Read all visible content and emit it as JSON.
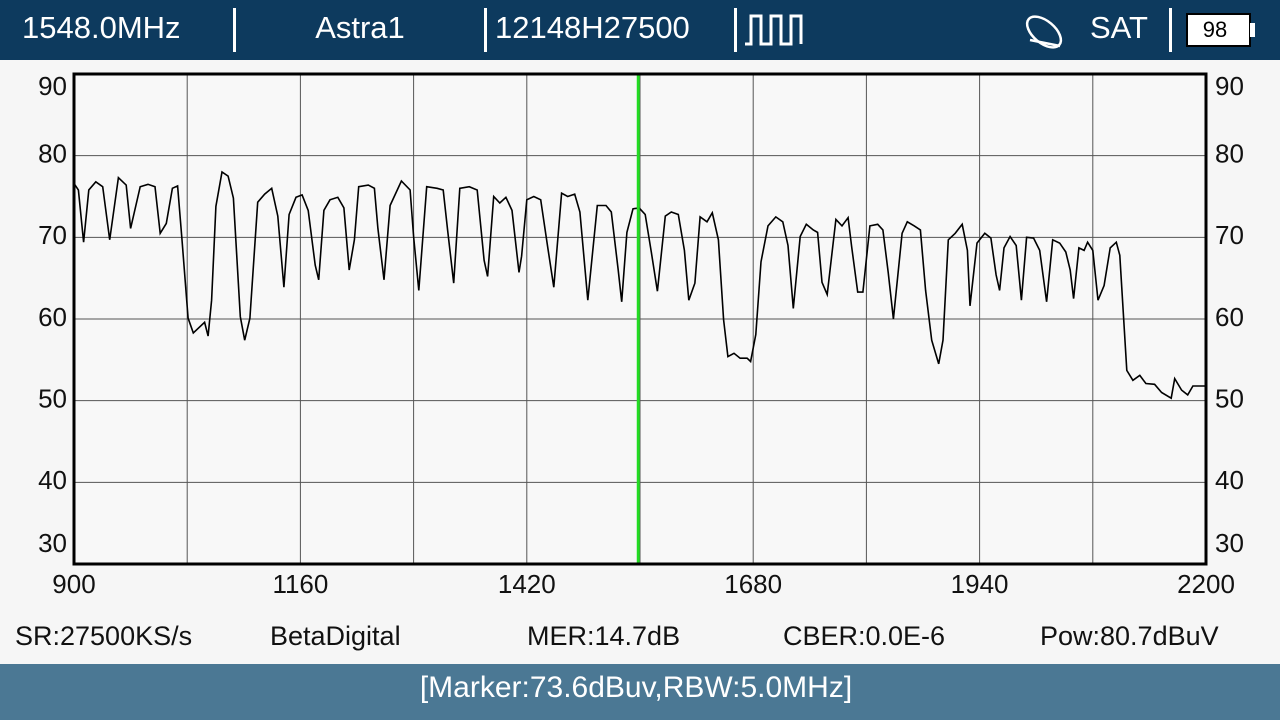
{
  "header": {
    "frequency": "1548.0MHz",
    "satellite": "Astra1",
    "transponder": "12148H27500",
    "mode": "SAT",
    "battery": "98"
  },
  "chart_data": {
    "type": "line",
    "color": "#000000",
    "grid": true,
    "x_minor_grid": true,
    "xlim": [
      900,
      2200
    ],
    "ylim": [
      30,
      90
    ],
    "xticks": [
      900,
      1160,
      1420,
      1680,
      1940,
      2200
    ],
    "yticks": [
      30,
      40,
      50,
      60,
      70,
      80,
      90
    ],
    "marker": {
      "x": 1548,
      "color": "#22dd22"
    },
    "x": [
      900,
      905,
      911,
      917,
      925,
      933,
      941,
      951,
      960,
      965,
      976,
      985,
      993,
      999,
      1006,
      1013,
      1019,
      1024,
      1031,
      1037,
      1050,
      1054,
      1058,
      1063,
      1070,
      1077,
      1083,
      1091,
      1096,
      1102,
      1111,
      1119,
      1127,
      1134,
      1141,
      1147,
      1155,
      1162,
      1169,
      1177,
      1181,
      1187,
      1194,
      1203,
      1210,
      1216,
      1222,
      1227,
      1238,
      1245,
      1249,
      1256,
      1263,
      1276,
      1286,
      1290,
      1296,
      1305,
      1317,
      1324,
      1329,
      1336,
      1343,
      1354,
      1363,
      1371,
      1375,
      1382,
      1389,
      1396,
      1403,
      1411,
      1414,
      1420,
      1428,
      1436,
      1444,
      1451,
      1460,
      1467,
      1475,
      1481,
      1490,
      1501,
      1511,
      1517,
      1525,
      1529,
      1535,
      1542,
      1549,
      1556,
      1563,
      1570,
      1579,
      1586,
      1594,
      1601,
      1606,
      1613,
      1619,
      1627,
      1633,
      1640,
      1646,
      1651,
      1658,
      1665,
      1673,
      1677,
      1683,
      1689,
      1697,
      1706,
      1714,
      1720,
      1726,
      1734,
      1741,
      1749,
      1754,
      1759,
      1765,
      1775,
      1782,
      1789,
      1793,
      1800,
      1806,
      1814,
      1823,
      1829,
      1835,
      1841,
      1851,
      1857,
      1865,
      1872,
      1878,
      1885,
      1893,
      1898,
      1904,
      1912,
      1920,
      1926,
      1929,
      1937,
      1946,
      1953,
      1959,
      1963,
      1968,
      1975,
      1982,
      1988,
      1994,
      2002,
      2009,
      2017,
      2024,
      2032,
      2039,
      2044,
      2048,
      2054,
      2060,
      2064,
      2070,
      2076,
      2083,
      2090,
      2097,
      2101,
      2109,
      2116,
      2124,
      2131,
      2141,
      2149,
      2160,
      2164,
      2172,
      2179,
      2185,
      2200
    ],
    "values": [
      76.6,
      75.8,
      69.4,
      75.8,
      76.8,
      76.2,
      69.7,
      77.3,
      76.4,
      71.1,
      76.2,
      76.5,
      76.2,
      70.5,
      71.7,
      76.0,
      76.3,
      69.7,
      60.1,
      58.3,
      59.6,
      57.9,
      62.3,
      73.8,
      78.0,
      77.5,
      74.8,
      60.3,
      57.4,
      60.1,
      74.3,
      75.3,
      76.0,
      72.6,
      63.9,
      72.8,
      74.9,
      75.2,
      73.3,
      66.6,
      64.8,
      73.3,
      74.6,
      74.9,
      73.6,
      66.0,
      69.7,
      76.2,
      76.4,
      76.0,
      71.1,
      64.8,
      73.9,
      76.9,
      75.8,
      70.1,
      63.5,
      76.2,
      76.0,
      75.8,
      70.9,
      64.4,
      76.0,
      76.2,
      75.8,
      67.2,
      65.2,
      75.0,
      74.2,
      74.9,
      73.3,
      65.7,
      67.7,
      74.6,
      75.0,
      74.6,
      68.8,
      63.9,
      75.4,
      75.0,
      75.3,
      73.1,
      62.3,
      73.9,
      73.9,
      73.1,
      66.0,
      62.1,
      70.6,
      73.5,
      73.6,
      72.8,
      68.2,
      63.4,
      72.6,
      73.1,
      72.8,
      68.4,
      62.3,
      64.4,
      72.5,
      71.9,
      73.0,
      69.7,
      59.9,
      55.4,
      55.8,
      55.2,
      55.2,
      54.8,
      58.1,
      67.0,
      71.4,
      72.5,
      71.9,
      69.0,
      61.3,
      70.1,
      71.6,
      70.9,
      70.6,
      64.5,
      63.0,
      72.2,
      71.4,
      72.4,
      68.9,
      63.3,
      63.3,
      71.4,
      71.6,
      70.9,
      65.7,
      60.0,
      70.5,
      71.9,
      71.4,
      70.9,
      63.5,
      57.4,
      54.5,
      57.4,
      69.7,
      70.5,
      71.6,
      68.4,
      61.6,
      69.3,
      70.5,
      69.9,
      65.4,
      63.5,
      68.7,
      70.1,
      69.0,
      62.3,
      70.0,
      69.9,
      68.4,
      62.1,
      69.7,
      69.3,
      68.2,
      66.0,
      62.5,
      68.7,
      68.4,
      69.4,
      68.4,
      62.3,
      64.1,
      68.7,
      69.4,
      67.8,
      53.7,
      52.5,
      53.1,
      52.1,
      52.0,
      51.0,
      50.3,
      52.7,
      51.3,
      50.7,
      51.8,
      51.8
    ]
  },
  "status": {
    "sr": "SR:27500KS/s",
    "provider": "BetaDigital",
    "mer": "MER:14.7dB",
    "cber": "CBER:0.0E-6",
    "power": "Pow:80.7dBuV"
  },
  "footer": "[Marker:73.6dBuv,RBW:5.0MHz]"
}
